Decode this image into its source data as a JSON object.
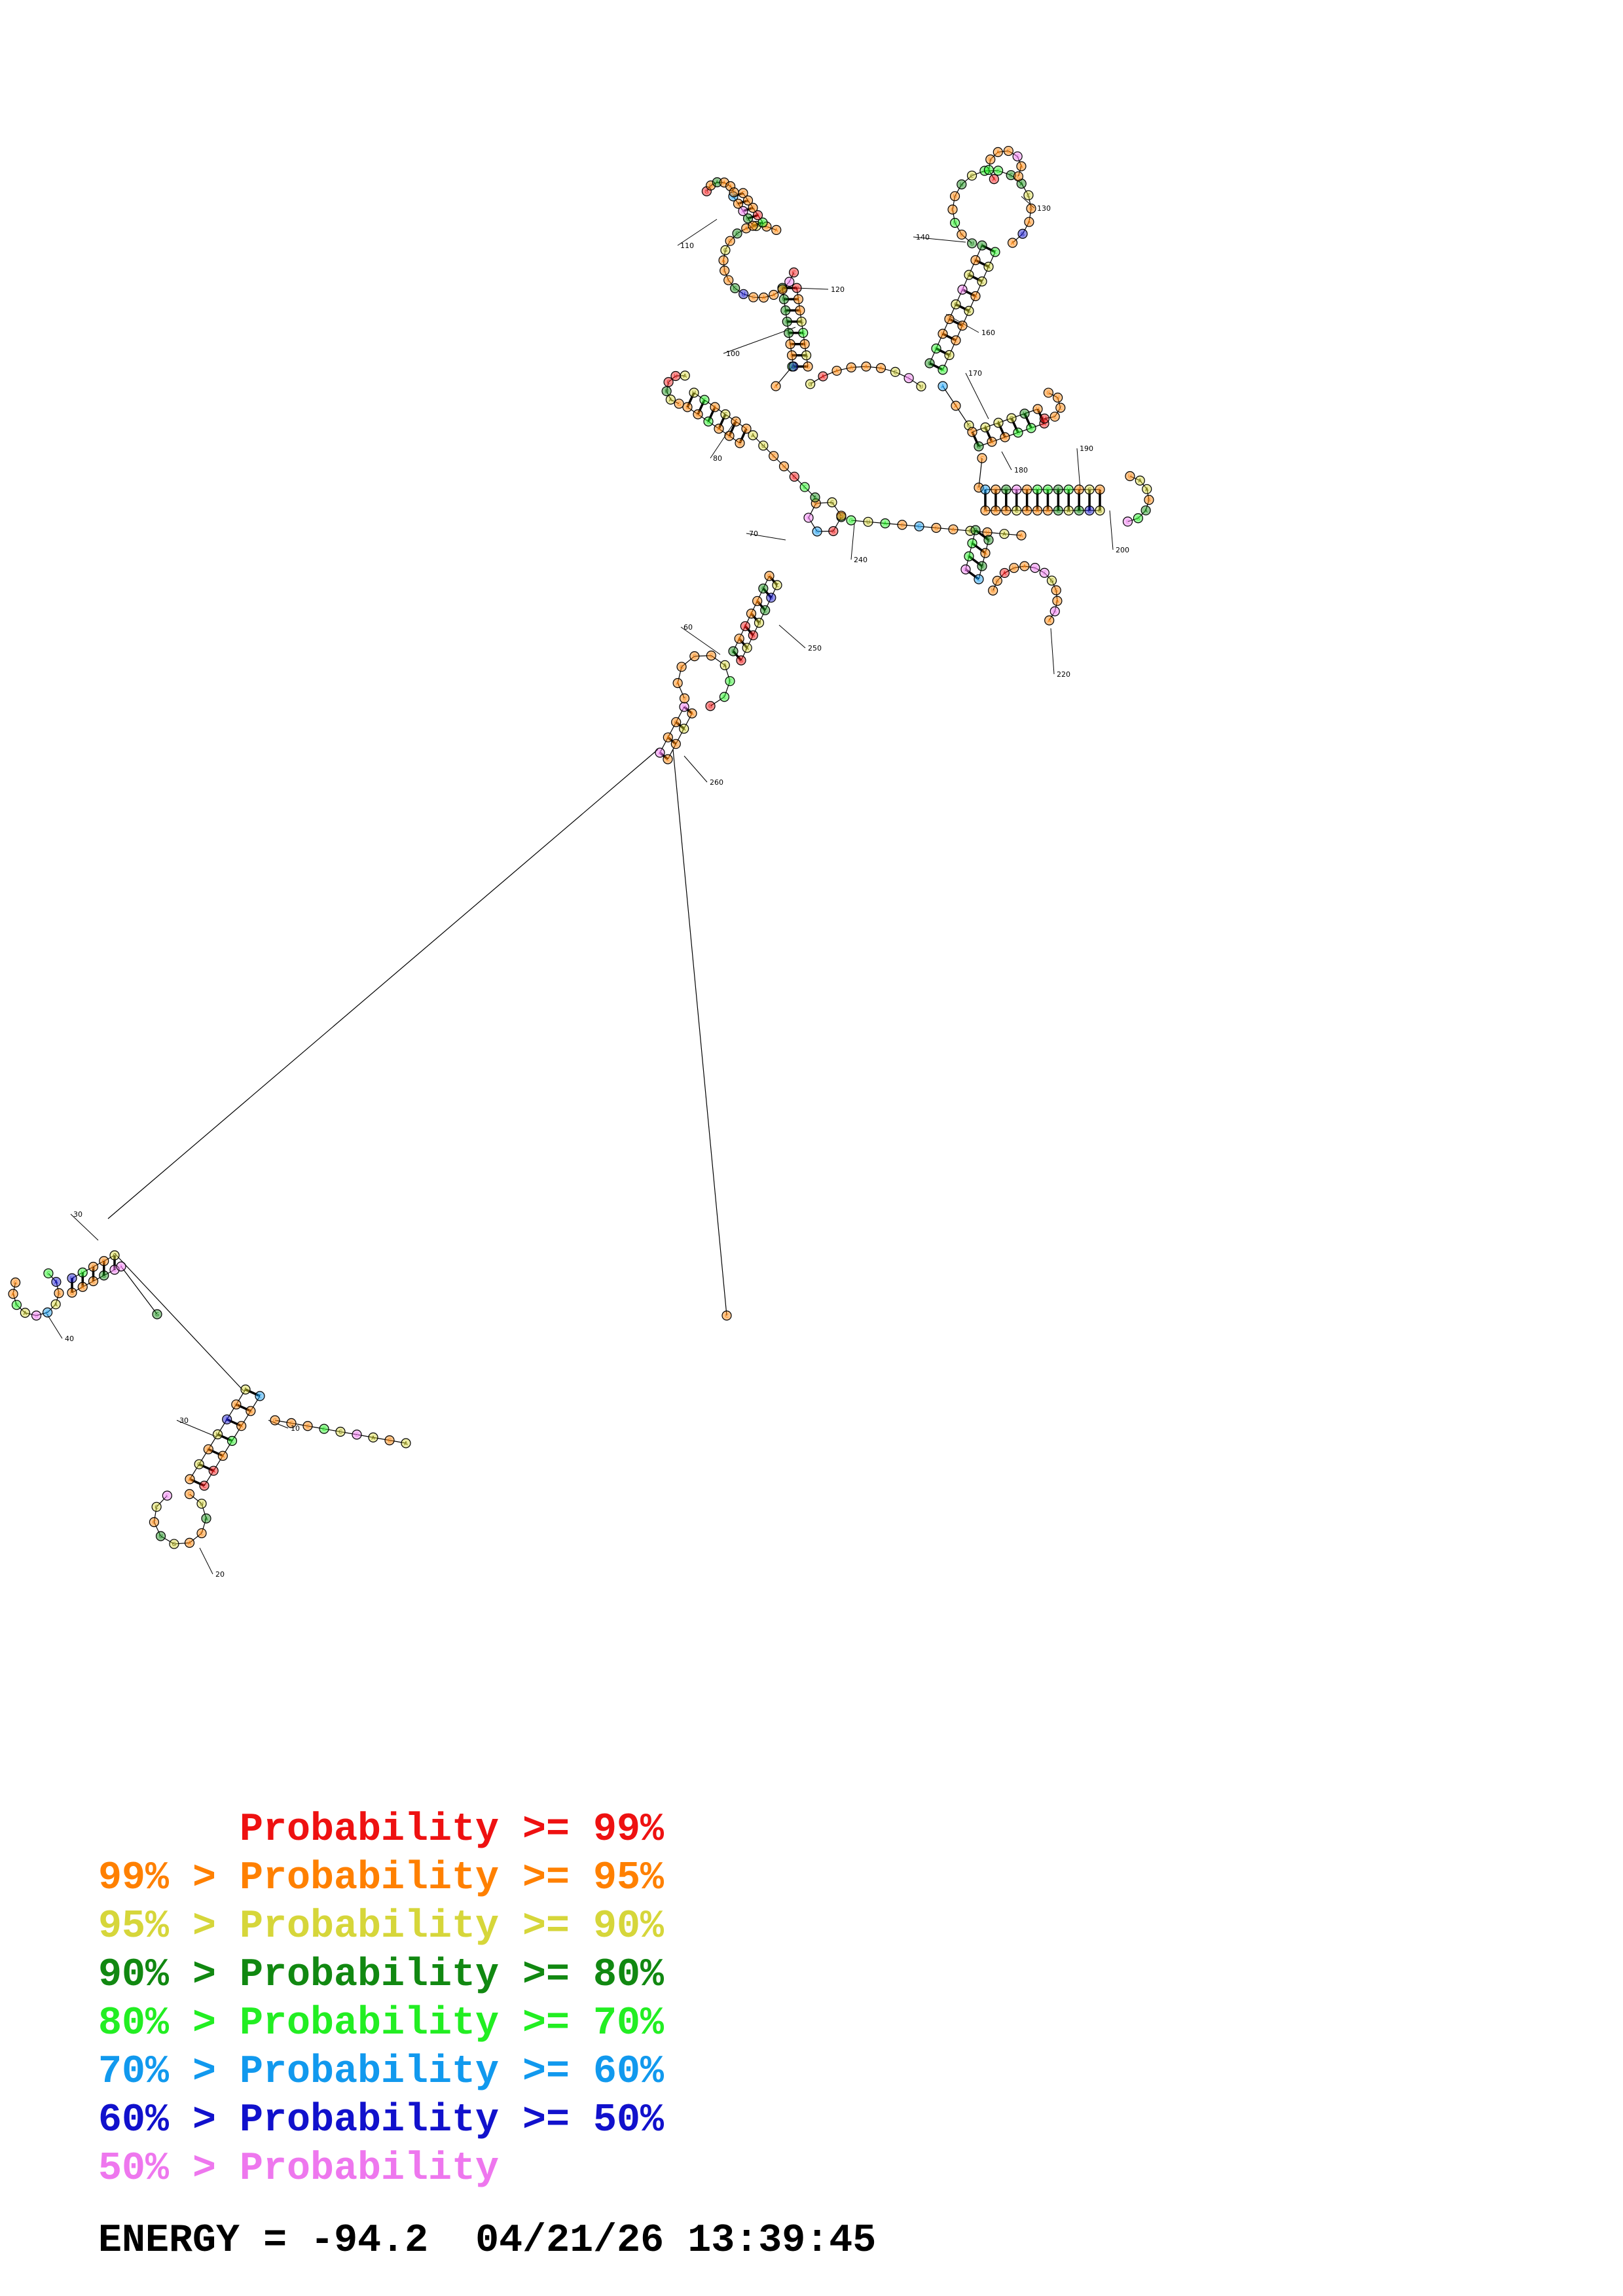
{
  "colors": {
    "p99": "#ee1111",
    "p95": "#ff8000",
    "p90": "#d6d63a",
    "p80": "#118811",
    "p70": "#22ee22",
    "p60": "#1199ee",
    "p50": "#1111cc",
    "plow": "#ee77ee",
    "line": "#000000"
  },
  "index_labels": [
    "10",
    "20",
    "30",
    "30",
    "40",
    "60",
    "70",
    "80",
    "100",
    "110",
    "120",
    "130",
    "140",
    "160",
    "170",
    "180",
    "190",
    "200",
    "220",
    "240",
    "250",
    "260"
  ],
  "legend": [
    {
      "left": "",
      "gt": "",
      "mid": "Probability",
      "ge": ">=",
      "right": "99%",
      "color_left": "p99",
      "color": "p99"
    },
    {
      "left": "99%",
      "gt": ">",
      "mid": "Probability",
      "ge": ">=",
      "right": "95%",
      "color": "p95"
    },
    {
      "left": "95%",
      "gt": ">",
      "mid": "Probability",
      "ge": ">=",
      "right": "90%",
      "color": "p90"
    },
    {
      "left": "90%",
      "gt": ">",
      "mid": "Probability",
      "ge": ">=",
      "right": "80%",
      "color": "p80"
    },
    {
      "left": "80%",
      "gt": ">",
      "mid": "Probability",
      "ge": ">=",
      "right": "70%",
      "color": "p70"
    },
    {
      "left": "70%",
      "gt": ">",
      "mid": "Probability",
      "ge": ">=",
      "right": "60%",
      "color": "p60"
    },
    {
      "left": "60%",
      "gt": ">",
      "mid": "Probability",
      "ge": ">=",
      "right": "50%",
      "color": "p50"
    },
    {
      "left": "50%",
      "gt": ">",
      "mid": "Probability",
      "ge": "",
      "right": "",
      "color": "plow"
    }
  ],
  "footer": {
    "energy_label": "ENERGY",
    "equals": "=",
    "energy_value": "-94.2",
    "date": "04/21/26",
    "time": "13:39:45"
  }
}
